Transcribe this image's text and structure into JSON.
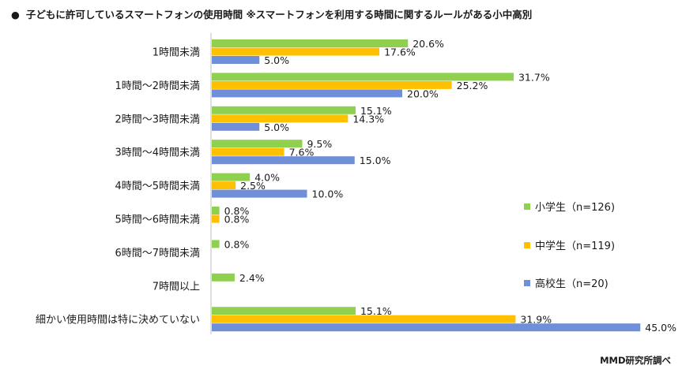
{
  "title": "子どもに許可しているスマートフォンの使用時間 ※スマートフォンを利用する時間に関するルールがある小中高別",
  "title_bullet": "●",
  "source": "MMD研究所調べ",
  "colors": {
    "elementary": "#8fd14f",
    "junior_high": "#ffc000",
    "high_school": "#6f8fd8"
  },
  "chart_data": {
    "type": "bar",
    "orientation": "horizontal",
    "title": "子どもに許可しているスマートフォンの使用時間 ※スマートフォンを利用する時間に関するルールがある小中高別",
    "categories": [
      "1時間未満",
      "1時間〜2時間未満",
      "2時間〜3時間未満",
      "3時間〜4時間未満",
      "4時間〜5時間未満",
      "5時間〜6時間未満",
      "6時間〜7時間未満",
      "7時間以上",
      "細かい使用時間は特に決めていない"
    ],
    "series": [
      {
        "name": "小学生（n=126)",
        "key": "elementary",
        "values": [
          20.6,
          31.7,
          15.1,
          9.5,
          4.0,
          0.8,
          0.8,
          2.4,
          15.1
        ]
      },
      {
        "name": "中学生（n=119)",
        "key": "junior_high",
        "values": [
          17.6,
          25.2,
          14.3,
          7.6,
          2.5,
          0.8,
          null,
          null,
          31.9
        ]
      },
      {
        "name": "高校生（n=20)",
        "key": "high_school",
        "values": [
          5.0,
          20.0,
          5.0,
          15.0,
          10.0,
          null,
          null,
          null,
          45.0
        ]
      }
    ],
    "xlim": [
      0,
      45
    ],
    "value_suffix": "%",
    "grid": false,
    "legend_position": "right"
  }
}
